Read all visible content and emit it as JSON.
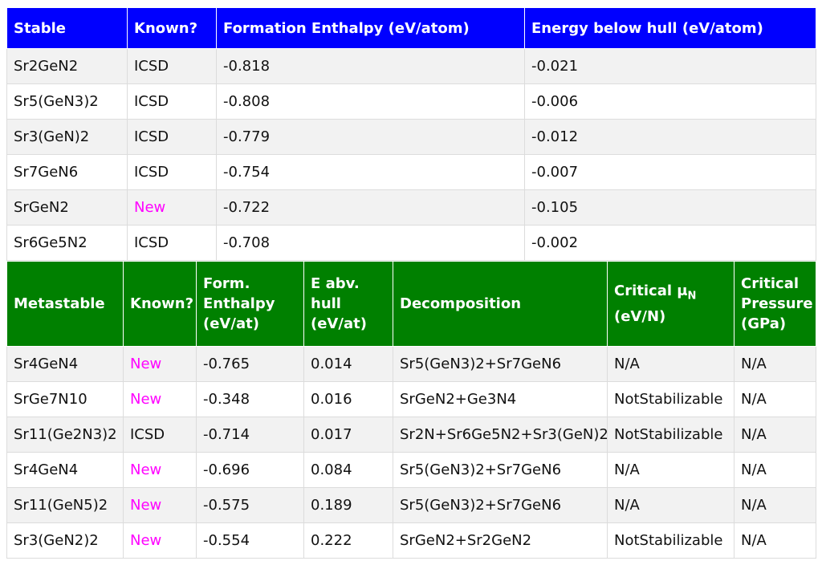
{
  "stable_table": {
    "headers": [
      "Stable",
      "Known?",
      "Formation Enthalpy (eV/atom)",
      "Energy below hull (eV/atom)"
    ],
    "rows": [
      {
        "compound": "Sr2GeN2",
        "known": "ICSD",
        "enthalpy": "-0.818",
        "hull": "-0.021"
      },
      {
        "compound": "Sr5(GeN3)2",
        "known": "ICSD",
        "enthalpy": "-0.808",
        "hull": "-0.006"
      },
      {
        "compound": "Sr3(GeN)2",
        "known": "ICSD",
        "enthalpy": "-0.779",
        "hull": "-0.012"
      },
      {
        "compound": "Sr7GeN6",
        "known": "ICSD",
        "enthalpy": "-0.754",
        "hull": "-0.007"
      },
      {
        "compound": "SrGeN2",
        "known": "New",
        "enthalpy": "-0.722",
        "hull": "-0.105"
      },
      {
        "compound": "Sr6Ge5N2",
        "known": "ICSD",
        "enthalpy": "-0.708",
        "hull": "-0.002"
      }
    ]
  },
  "metastable_table": {
    "headers": {
      "metastable": "Metastable",
      "known": "Known?",
      "enthalpy": "Form. Enthalpy (eV/at)",
      "hull": "E abv. hull (eV/at)",
      "decomposition": "Decomposition",
      "mu_main": "Critical μ",
      "mu_sub": "N",
      "mu_unit": "(eV/N)",
      "pressure": "Critical Pressure (GPa)"
    },
    "rows": [
      {
        "compound": "Sr4GeN4",
        "known": "New",
        "enthalpy": "-0.765",
        "hull": "0.014",
        "decomposition": "Sr5(GeN3)2+Sr7GeN6",
        "mu": "N/A",
        "pressure": "N/A"
      },
      {
        "compound": "SrGe7N10",
        "known": "New",
        "enthalpy": "-0.348",
        "hull": "0.016",
        "decomposition": "SrGeN2+Ge3N4",
        "mu": "NotStabilizable",
        "pressure": "N/A"
      },
      {
        "compound": "Sr11(Ge2N3)2",
        "known": "ICSD",
        "enthalpy": "-0.714",
        "hull": "0.017",
        "decomposition": "Sr2N+Sr6Ge5N2+Sr3(GeN)2",
        "mu": "NotStabilizable",
        "pressure": "N/A"
      },
      {
        "compound": "Sr4GeN4",
        "known": "New",
        "enthalpy": "-0.696",
        "hull": "0.084",
        "decomposition": "Sr5(GeN3)2+Sr7GeN6",
        "mu": "N/A",
        "pressure": "N/A"
      },
      {
        "compound": "Sr11(GeN5)2",
        "known": "New",
        "enthalpy": "-0.575",
        "hull": "0.189",
        "decomposition": "Sr5(GeN3)2+Sr7GeN6",
        "mu": "N/A",
        "pressure": "N/A"
      },
      {
        "compound": "Sr3(GeN2)2",
        "known": "New",
        "enthalpy": "-0.554",
        "hull": "0.222",
        "decomposition": "SrGeN2+Sr2GeN2",
        "mu": "NotStabilizable",
        "pressure": "N/A"
      }
    ]
  },
  "colors": {
    "stable_header": "#0000ff",
    "metastable_header": "#008000",
    "new_text": "#ff00ff",
    "row_stripe": "#f2f2f2"
  }
}
